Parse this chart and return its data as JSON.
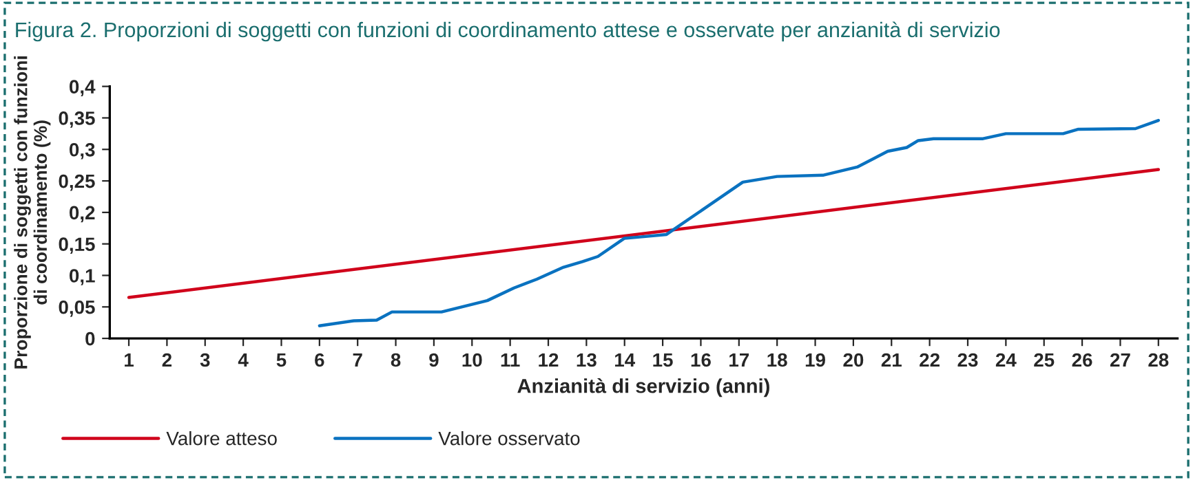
{
  "chart_data": {
    "type": "line",
    "title": "Figura 2. Proporzioni di soggetti con funzioni di coordinamento attese e osservate per anzianità di servizio",
    "xlabel": "Anzianità di servizio (anni)",
    "ylabel": "Proporzione di soggetti con funzioni\ndi coordinamento (%)",
    "xlim": [
      0.5,
      28.5
    ],
    "xticks": [
      1,
      2,
      3,
      4,
      5,
      6,
      7,
      8,
      9,
      10,
      11,
      12,
      13,
      14,
      15,
      16,
      17,
      18,
      19,
      20,
      21,
      22,
      23,
      24,
      25,
      26,
      27,
      28
    ],
    "ylim": [
      0,
      0.4
    ],
    "yticks": [
      0,
      {
        "value": 0.05,
        "label": "0,05"
      },
      {
        "value": 0.1,
        "label": "0,1"
      },
      {
        "value": 0.15,
        "label": "0,15"
      },
      {
        "value": 0.2,
        "label": "0,2"
      },
      {
        "value": 0.25,
        "label": "0,25"
      },
      {
        "value": 0.3,
        "label": "0,3"
      },
      {
        "value": 0.35,
        "label": "0,35"
      },
      {
        "value": 0.4,
        "label": "0,4"
      }
    ],
    "grid": false,
    "legend": "bottom left",
    "marker": "none",
    "line_style": "solid",
    "series": [
      {
        "name": "Valore atteso",
        "color": "#d0021b",
        "x": [
          1,
          28
        ],
        "values": [
          0.065,
          0.268
        ]
      },
      {
        "name": "Valore osservato",
        "color": "#0a72c0",
        "x": [
          6.0,
          6.9,
          7.5,
          7.9,
          9.2,
          10.4,
          11.1,
          11.7,
          12.4,
          12.9,
          13.3,
          14.0,
          14.4,
          15.1,
          17.1,
          18.0,
          19.2,
          20.1,
          20.9,
          21.4,
          21.7,
          22.1,
          23.4,
          24.0,
          25.5,
          25.9,
          27.4,
          28.0
        ],
        "values": [
          0.02,
          0.028,
          0.029,
          0.042,
          0.042,
          0.06,
          0.08,
          0.094,
          0.113,
          0.122,
          0.13,
          0.159,
          0.161,
          0.165,
          0.248,
          0.257,
          0.259,
          0.272,
          0.297,
          0.303,
          0.314,
          0.317,
          0.317,
          0.325,
          0.325,
          0.332,
          0.333,
          0.346
        ]
      }
    ]
  }
}
